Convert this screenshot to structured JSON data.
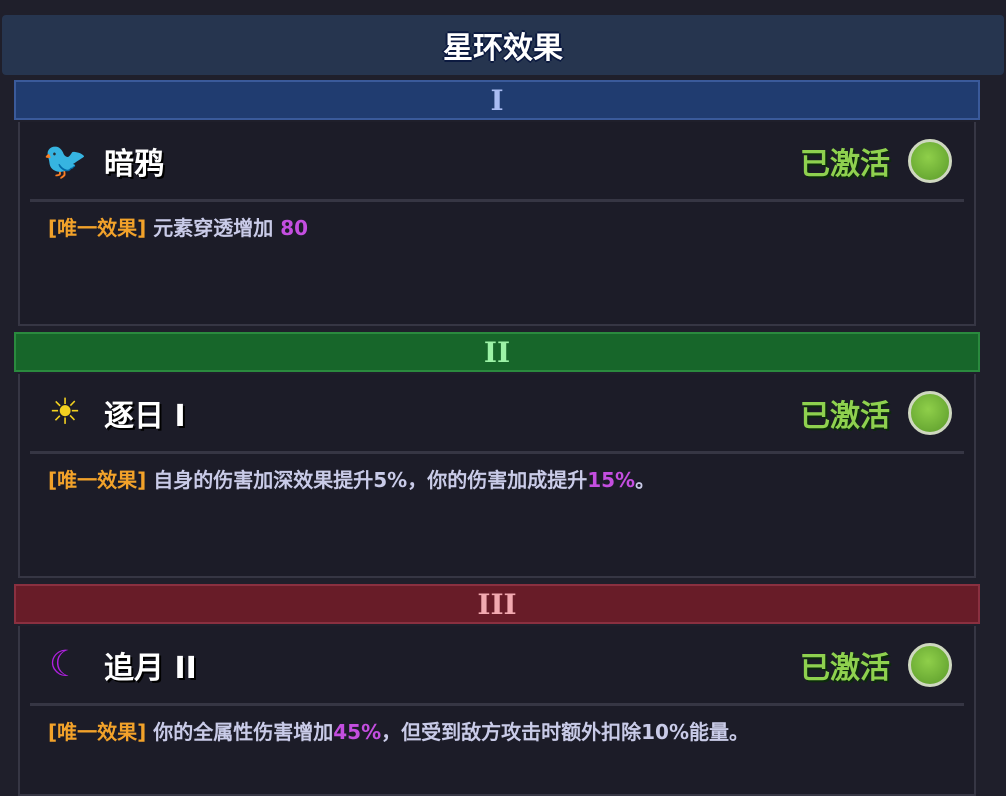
{
  "title": "星环效果",
  "tiers": [
    {
      "numeral": "I",
      "bg": "#203c70",
      "fg": "#a9bcf2",
      "name": "暗鸦",
      "icon": "crow-icon",
      "status": "已激活",
      "tag": "[唯一效果]",
      "desc_before": "元素穿透增加 ",
      "desc_hl": "80",
      "desc_after": ""
    },
    {
      "numeral": "II",
      "bg": "#17662a",
      "fg": "#9cf2a6",
      "name": "逐日 I",
      "icon": "sun-icon",
      "status": "已激活",
      "tag": "[唯一效果]",
      "desc_before": "自身的伤害加深效果提升5%，你的伤害加成提升",
      "desc_hl": "15%",
      "desc_after": "。"
    },
    {
      "numeral": "III",
      "bg": "#681c28",
      "fg": "#f2a9b0",
      "name": "追月 II",
      "icon": "moon-icon",
      "status": "已激活",
      "tag": "[唯一效果]",
      "desc_before": "你的全属性伤害增加",
      "desc_hl": "45%",
      "desc_after": "，但受到敌方攻击时额外扣除10%能量。"
    }
  ]
}
